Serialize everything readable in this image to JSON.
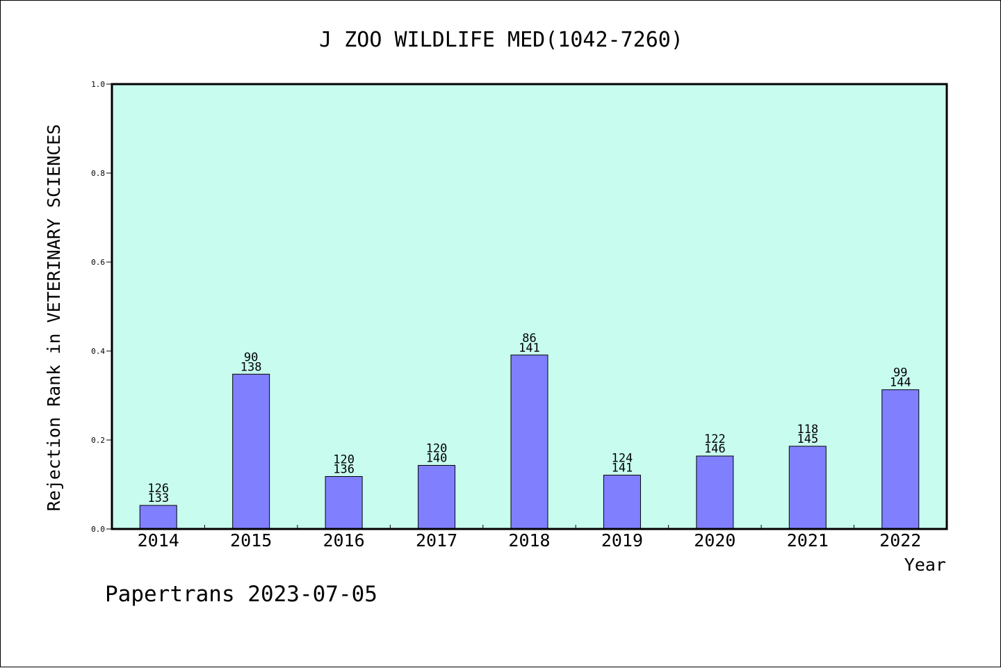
{
  "chart_data": {
    "type": "bar",
    "title": "J ZOO WILDLIFE MED(1042-7260)",
    "xlabel": "Year",
    "ylabel": "Rejection Rank in VETERINARY SCIENCES",
    "categories": [
      "2014",
      "2015",
      "2016",
      "2017",
      "2018",
      "2019",
      "2020",
      "2021",
      "2022"
    ],
    "values": [
      0.053,
      0.348,
      0.118,
      0.143,
      0.391,
      0.121,
      0.164,
      0.186,
      0.313
    ],
    "bar_labels_top": [
      "126",
      "90",
      "120",
      "120",
      "86",
      "124",
      "122",
      "118",
      "99"
    ],
    "bar_labels_bottom": [
      "133",
      "138",
      "136",
      "140",
      "141",
      "141",
      "146",
      "145",
      "144"
    ],
    "yticks": [
      "0.0",
      "0.2",
      "0.4",
      "0.6",
      "0.8",
      "1.0"
    ],
    "ylim": [
      0,
      1.0
    ],
    "grid": false,
    "colors": {
      "plot_background": "#c8fcee",
      "bar_fill": "#8080ff",
      "bar_stroke": "#000000"
    }
  },
  "footer": {
    "credit": "Papertrans 2023-07-05"
  }
}
